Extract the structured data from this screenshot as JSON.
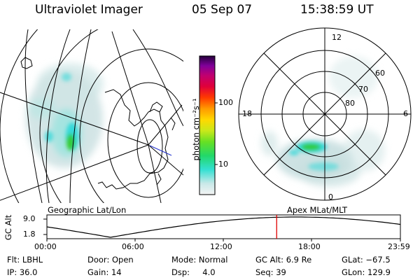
{
  "header": {
    "instrument": "Ultraviolet Imager",
    "date": "05 Sep 07",
    "time": "15:38:59 UT"
  },
  "colorbar": {
    "unit_label": "photon cm⁻²s⁻¹",
    "ticks": [
      "100",
      "10"
    ]
  },
  "polar_plot": {
    "mlt_labels": {
      "top": "12",
      "left": "18",
      "right": "6",
      "bottom": "0"
    },
    "lat_labels": [
      "60",
      "70",
      "80"
    ]
  },
  "panel_labels": {
    "left": "Geographic Lat/Lon",
    "right": "Apex MLat/MLT"
  },
  "altitude_strip": {
    "axis_title": "GC Alt",
    "ymax_label": "9.0",
    "ymin_label": "1.8",
    "time_ticks": [
      "00:00",
      "06:00",
      "12:00",
      "18:00",
      "23:59"
    ],
    "current_time_fraction": 0.65
  },
  "info": {
    "row1": [
      {
        "key": "flt",
        "text": "Flt: LBHL"
      },
      {
        "key": "door",
        "text": "Door: Open"
      },
      {
        "key": "mode",
        "text": "Mode: Normal"
      },
      {
        "key": "gcalt",
        "text": "GC Alt: 6.9 Re"
      },
      {
        "key": "glat",
        "text": "GLat: −67.5"
      }
    ],
    "row2": [
      {
        "key": "ip",
        "text": "IP: 36.0"
      },
      {
        "key": "gain",
        "text": "Gain: 14"
      },
      {
        "key": "dsp",
        "text": "Dsp:     4.0"
      },
      {
        "key": "seq",
        "text": "Seq: 39"
      },
      {
        "key": "glon",
        "text": "GLon: 129.9"
      }
    ]
  },
  "colors": {
    "marker": "#e00000",
    "emission_low": "#c8dfe0",
    "emission_mid": "#35d9d9",
    "emission_high": "#33cc33"
  }
}
